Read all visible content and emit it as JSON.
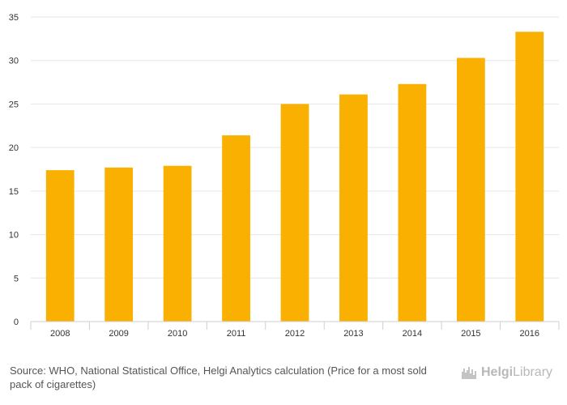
{
  "chart_data": {
    "type": "bar",
    "categories": [
      "2008",
      "2009",
      "2010",
      "2011",
      "2012",
      "2013",
      "2014",
      "2015",
      "2016"
    ],
    "values": [
      17.4,
      17.7,
      17.9,
      21.4,
      25.0,
      26.1,
      27.3,
      30.3,
      33.3
    ],
    "title": "",
    "xlabel": "",
    "ylabel": "",
    "ylim": [
      0,
      35
    ],
    "yticks": [
      "0",
      "5",
      "10",
      "15",
      "20",
      "25",
      "30",
      "35"
    ],
    "grid": true,
    "bar_color": "#f9b000"
  },
  "footer": {
    "source": "Source: WHO, National Statistical Office, Helgi Analytics calculation (Price for a most sold pack of cigarettes)"
  },
  "logo": {
    "text_bold": "Helgi",
    "text_regular": "Library",
    "icon": "helgi-library-logo-icon"
  }
}
